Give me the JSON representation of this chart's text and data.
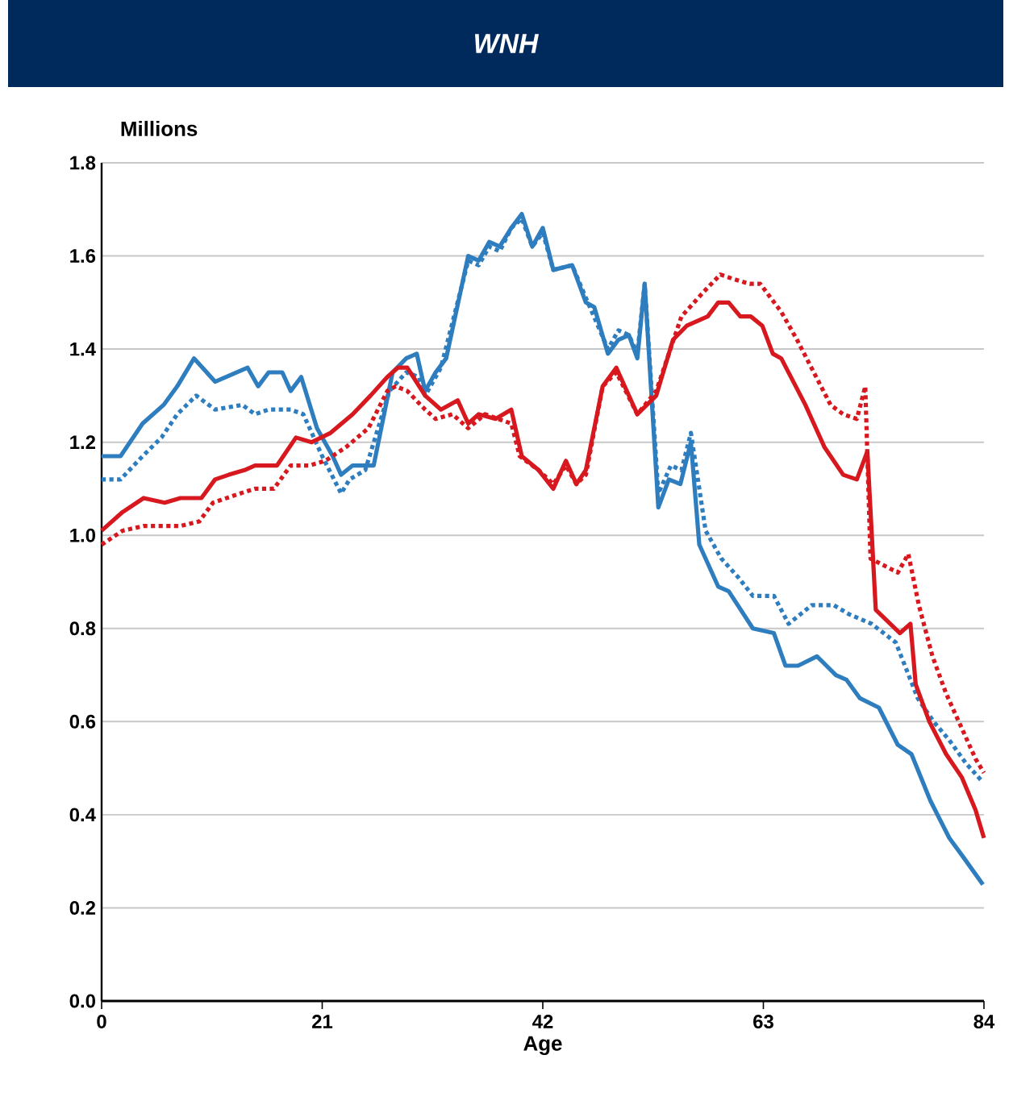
{
  "chart_data": {
    "type": "line",
    "title": "WNH",
    "ylabel": "Millions",
    "xlabel": "Age",
    "xlim": [
      0,
      84
    ],
    "xticks": [
      0,
      21,
      42,
      63,
      84
    ],
    "ylim": [
      0,
      1.8
    ],
    "yticks": [
      {
        "value": 0,
        "label": "0.0"
      },
      {
        "value": 0.2,
        "label": "0.2"
      },
      {
        "value": 0.4,
        "label": "0.4"
      },
      {
        "value": 0.6,
        "label": "0.6"
      },
      {
        "value": 0.8,
        "label": "0.8"
      },
      {
        "value": 1.0,
        "label": "1.0"
      },
      {
        "value": 1.2,
        "label": "1.2"
      },
      {
        "value": 1.4,
        "label": "1.4"
      },
      {
        "value": 1.6,
        "label": "1.6"
      },
      {
        "value": 1.8,
        "label": "1.8"
      }
    ],
    "grid": "y",
    "marker": "none",
    "series": [
      {
        "color": "#2e7ebf",
        "line_style": "solid",
        "x": [
          0,
          1.8,
          3.9,
          5.9,
          7.2,
          8.8,
          10.8,
          13.9,
          14.9,
          15.9,
          17.2,
          18,
          19,
          20.5,
          22,
          22.8,
          23.9,
          25.9,
          27.7,
          29,
          30,
          30.8,
          31.8,
          32.8,
          34.9,
          35.9,
          36.9,
          37.9,
          39,
          40,
          41,
          42,
          43,
          44.8,
          46.1,
          46.9,
          48.2,
          49.2,
          50.2,
          51,
          51.7,
          53,
          54,
          55.1,
          56.1,
          56.9,
          58.7,
          59.7,
          62,
          64,
          65.1,
          66.3,
          68.1,
          69.9,
          70.9,
          72.2,
          74,
          75.8,
          77.1,
          78.9,
          80.7,
          82,
          83.9
        ],
        "values": [
          1.17,
          1.17,
          1.24,
          1.28,
          1.32,
          1.38,
          1.33,
          1.36,
          1.32,
          1.35,
          1.35,
          1.31,
          1.34,
          1.23,
          1.17,
          1.13,
          1.15,
          1.15,
          1.35,
          1.38,
          1.39,
          1.31,
          1.35,
          1.38,
          1.6,
          1.59,
          1.63,
          1.62,
          1.66,
          1.69,
          1.62,
          1.66,
          1.57,
          1.58,
          1.5,
          1.49,
          1.39,
          1.42,
          1.43,
          1.38,
          1.54,
          1.06,
          1.12,
          1.11,
          1.2,
          0.98,
          0.89,
          0.88,
          0.8,
          0.79,
          0.72,
          0.72,
          0.74,
          0.7,
          0.69,
          0.65,
          0.63,
          0.55,
          0.53,
          0.43,
          0.35,
          0.31,
          0.25
        ]
      },
      {
        "color": "#2e7ebf",
        "line_style": "dotted",
        "x": [
          0,
          1.8,
          3.9,
          5.7,
          7.2,
          9,
          10.8,
          13.4,
          14.6,
          15.9,
          18,
          19.2,
          21,
          22.8,
          23.6,
          25.1,
          27.4,
          29,
          30.2,
          30.8,
          32.3,
          34.9,
          35.9,
          36.9,
          37.9,
          39,
          40,
          41,
          42,
          43,
          44.8,
          46.1,
          48.2,
          49.2,
          50.2,
          51,
          51.7,
          53,
          54.2,
          55.2,
          56.1,
          57.5,
          59,
          60.6,
          62,
          64,
          65.4,
          67.6,
          69.7,
          71.2,
          73.3,
          75.6,
          77.7,
          79.2,
          80.7,
          82.3,
          83.9
        ],
        "values": [
          1.12,
          1.12,
          1.17,
          1.21,
          1.26,
          1.3,
          1.27,
          1.28,
          1.26,
          1.27,
          1.27,
          1.26,
          1.17,
          1.09,
          1.12,
          1.14,
          1.31,
          1.35,
          1.34,
          1.3,
          1.36,
          1.59,
          1.58,
          1.62,
          1.61,
          1.66,
          1.68,
          1.62,
          1.65,
          1.57,
          1.58,
          1.51,
          1.4,
          1.44,
          1.43,
          1.39,
          1.54,
          1.09,
          1.15,
          1.14,
          1.22,
          1.01,
          0.95,
          0.91,
          0.87,
          0.87,
          0.81,
          0.85,
          0.85,
          0.83,
          0.81,
          0.77,
          0.65,
          0.6,
          0.56,
          0.51,
          0.47
        ]
      },
      {
        "color": "#d7191f",
        "line_style": "solid",
        "x": [
          0,
          2,
          4,
          6,
          7.5,
          9.5,
          10.8,
          12.1,
          13.6,
          14.6,
          16.7,
          18.5,
          20,
          21.8,
          23.9,
          25.6,
          27.2,
          28.2,
          29.1,
          30.8,
          32.3,
          33.9,
          34.9,
          35.9,
          37.5,
          39,
          40,
          41.6,
          43,
          44.2,
          45.2,
          46.1,
          47.7,
          49,
          51,
          52.8,
          54.4,
          55.7,
          57.7,
          58.7,
          59.7,
          60.8,
          61.8,
          62.9,
          63.9,
          64.7,
          67,
          68.8,
          70.6,
          71.9,
          72.9,
          73.7,
          76,
          77,
          77.5,
          78.8,
          80.4,
          81.9,
          83.2,
          84
        ],
        "values": [
          1.01,
          1.05,
          1.08,
          1.07,
          1.08,
          1.08,
          1.12,
          1.13,
          1.14,
          1.15,
          1.15,
          1.21,
          1.2,
          1.22,
          1.26,
          1.3,
          1.34,
          1.36,
          1.36,
          1.3,
          1.27,
          1.29,
          1.24,
          1.26,
          1.25,
          1.27,
          1.17,
          1.14,
          1.1,
          1.16,
          1.11,
          1.14,
          1.32,
          1.36,
          1.26,
          1.3,
          1.42,
          1.45,
          1.47,
          1.5,
          1.5,
          1.47,
          1.47,
          1.45,
          1.39,
          1.38,
          1.28,
          1.19,
          1.13,
          1.12,
          1.18,
          0.84,
          0.79,
          0.81,
          0.68,
          0.6,
          0.53,
          0.48,
          0.41,
          0.35
        ]
      },
      {
        "color": "#d7191f",
        "line_style": "dotted",
        "x": [
          0,
          2,
          4,
          6,
          7.5,
          9.3,
          10.6,
          13.2,
          14.6,
          16.4,
          18,
          19.8,
          21.3,
          23.3,
          25.4,
          27.2,
          28,
          29.1,
          30.8,
          31.8,
          33.4,
          34.9,
          36.5,
          39,
          39.8,
          41.6,
          43,
          44.2,
          45.2,
          46.1,
          47.7,
          49,
          51,
          52.8,
          55.2,
          57.2,
          58.9,
          60.2,
          61.7,
          62.7,
          64.7,
          66.2,
          67.8,
          69.4,
          70.6,
          71.9,
          72.7,
          73.2,
          75.8,
          76.8,
          77.8,
          79.1,
          80.4,
          82,
          83.2,
          84
        ],
        "values": [
          0.98,
          1.01,
          1.02,
          1.02,
          1.02,
          1.03,
          1.07,
          1.09,
          1.1,
          1.1,
          1.15,
          1.15,
          1.16,
          1.19,
          1.23,
          1.31,
          1.32,
          1.31,
          1.27,
          1.25,
          1.26,
          1.23,
          1.26,
          1.24,
          1.17,
          1.14,
          1.11,
          1.15,
          1.11,
          1.13,
          1.32,
          1.35,
          1.26,
          1.31,
          1.47,
          1.52,
          1.56,
          1.55,
          1.54,
          1.54,
          1.48,
          1.42,
          1.35,
          1.28,
          1.26,
          1.25,
          1.32,
          0.95,
          0.92,
          0.96,
          0.85,
          0.74,
          0.66,
          0.58,
          0.52,
          0.49
        ]
      }
    ]
  }
}
